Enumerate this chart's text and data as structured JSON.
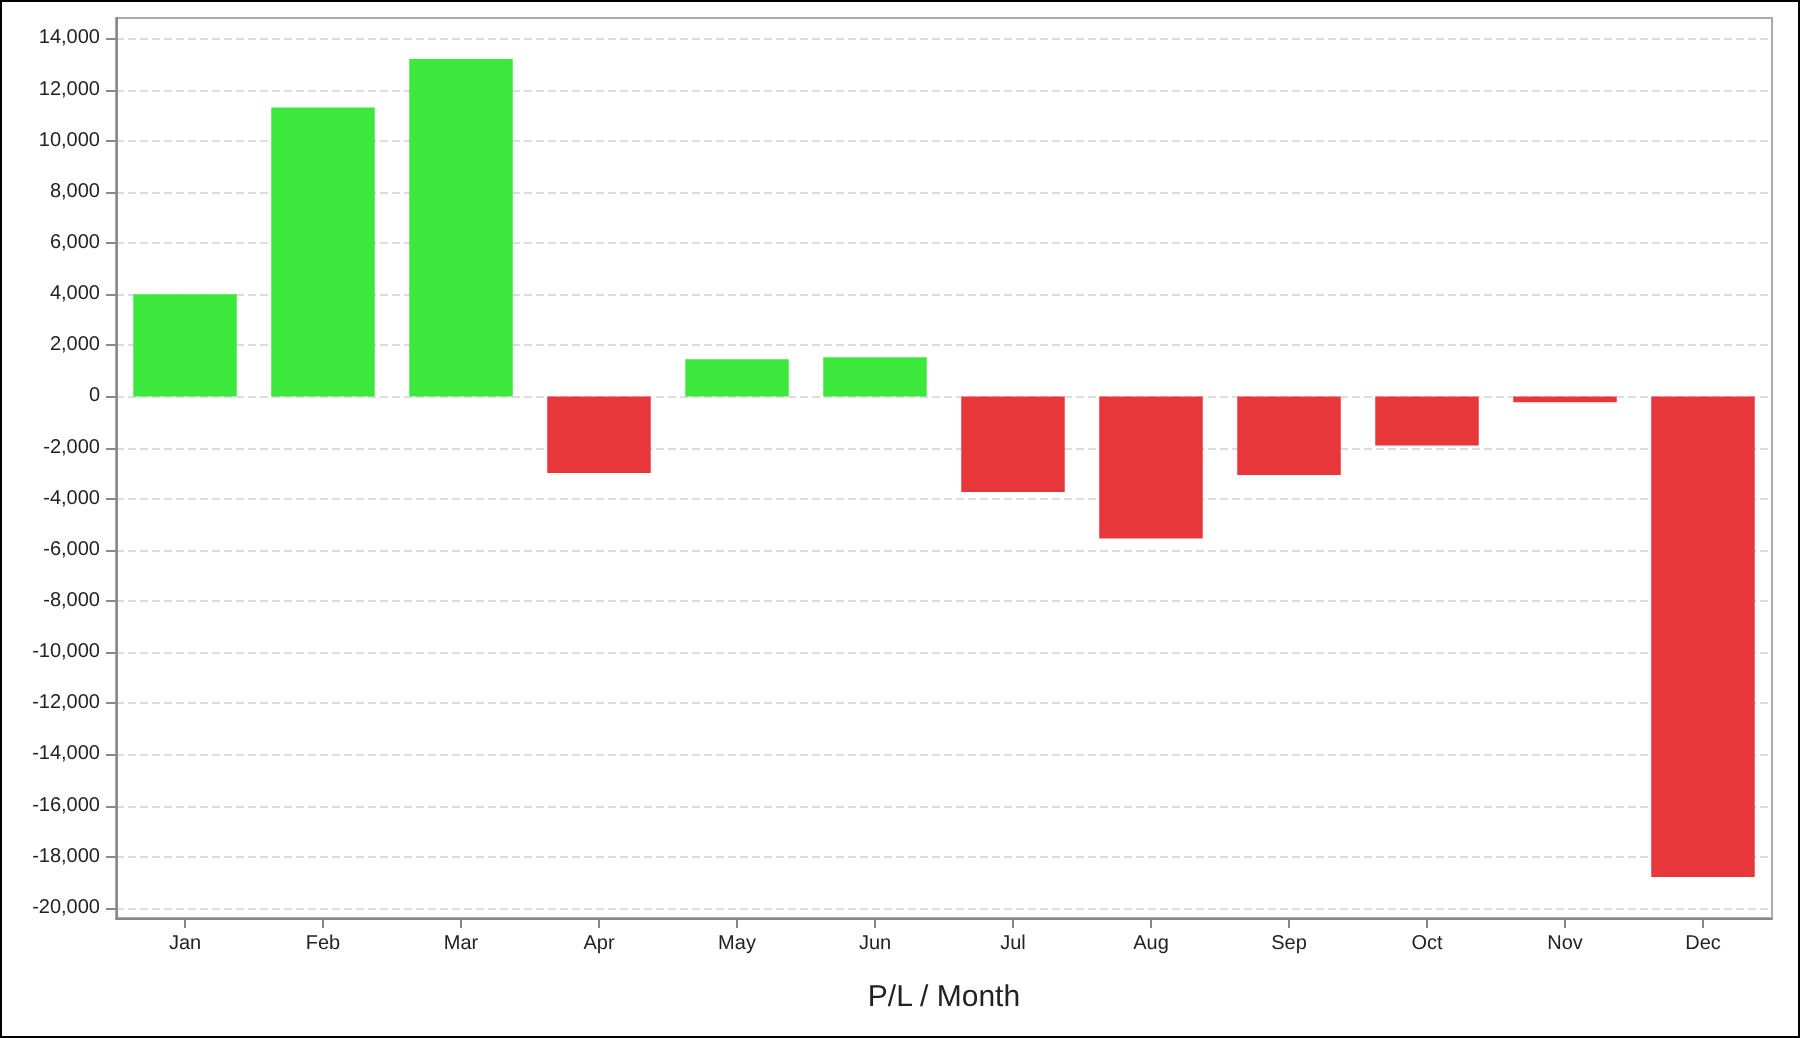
{
  "chart_data": {
    "type": "bar",
    "xlabel": "P/L / Month",
    "categories": [
      "Jan",
      "Feb",
      "Mar",
      "Apr",
      "May",
      "Jun",
      "Jul",
      "Aug",
      "Sep",
      "Oct",
      "Nov",
      "Dec"
    ],
    "values": [
      4000,
      11300,
      13200,
      -3000,
      1450,
      1530,
      -3740,
      -5560,
      -3070,
      -1920,
      -230,
      -18800
    ],
    "colors": [
      "#3de83d",
      "#3de83d",
      "#3de83d",
      "#e8373b",
      "#3de83d",
      "#3de83d",
      "#e8373b",
      "#e8373b",
      "#e8373b",
      "#e8373b",
      "#e8373b",
      "#e8373b"
    ],
    "ylim": [
      -20400,
      14800
    ],
    "yticks": [
      {
        "value": -20000,
        "label": "-20,000"
      },
      {
        "value": -18000,
        "label": "-18,000"
      },
      {
        "value": -16000,
        "label": "-16,000"
      },
      {
        "value": -14000,
        "label": "-14,000"
      },
      {
        "value": -12000,
        "label": "-12,000"
      },
      {
        "value": -10000,
        "label": "-10,000"
      },
      {
        "value": -8000,
        "label": "-8,000"
      },
      {
        "value": -6000,
        "label": "-6,000"
      },
      {
        "value": -4000,
        "label": "-4,000"
      },
      {
        "value": -2000,
        "label": "-2,000"
      },
      0,
      {
        "value": 2000,
        "label": "2,000"
      },
      {
        "value": 4000,
        "label": "4,000"
      },
      {
        "value": 6000,
        "label": "6,000"
      },
      {
        "value": 8000,
        "label": "8,000"
      },
      {
        "value": 10000,
        "label": "10,000"
      },
      {
        "value": 12000,
        "label": "12,000"
      },
      {
        "value": 14000,
        "label": "14,000"
      }
    ],
    "grid": "y"
  }
}
